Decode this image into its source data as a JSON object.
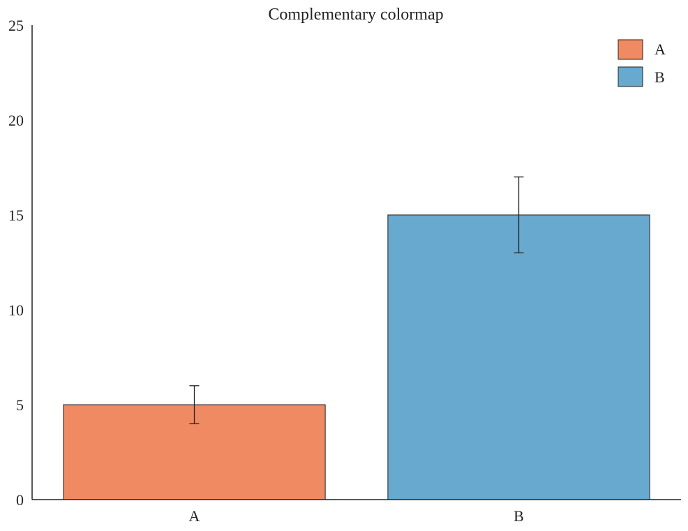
{
  "chart_data": {
    "type": "bar",
    "title": "Complementary colormap",
    "xlabel": "",
    "ylabel": "",
    "categories": [
      "A",
      "B"
    ],
    "values": [
      5,
      15
    ],
    "errors": [
      1,
      2
    ],
    "colors": [
      "#f08a62",
      "#67a9cf"
    ],
    "ylim": [
      0,
      25
    ],
    "yticks": [
      "0",
      "5",
      "10",
      "15",
      "20",
      "25"
    ],
    "ytick_values": [
      0,
      5,
      10,
      15,
      20,
      25
    ],
    "legend": {
      "placement": "top-right",
      "entries": [
        "A",
        "B"
      ]
    },
    "grid": false
  }
}
